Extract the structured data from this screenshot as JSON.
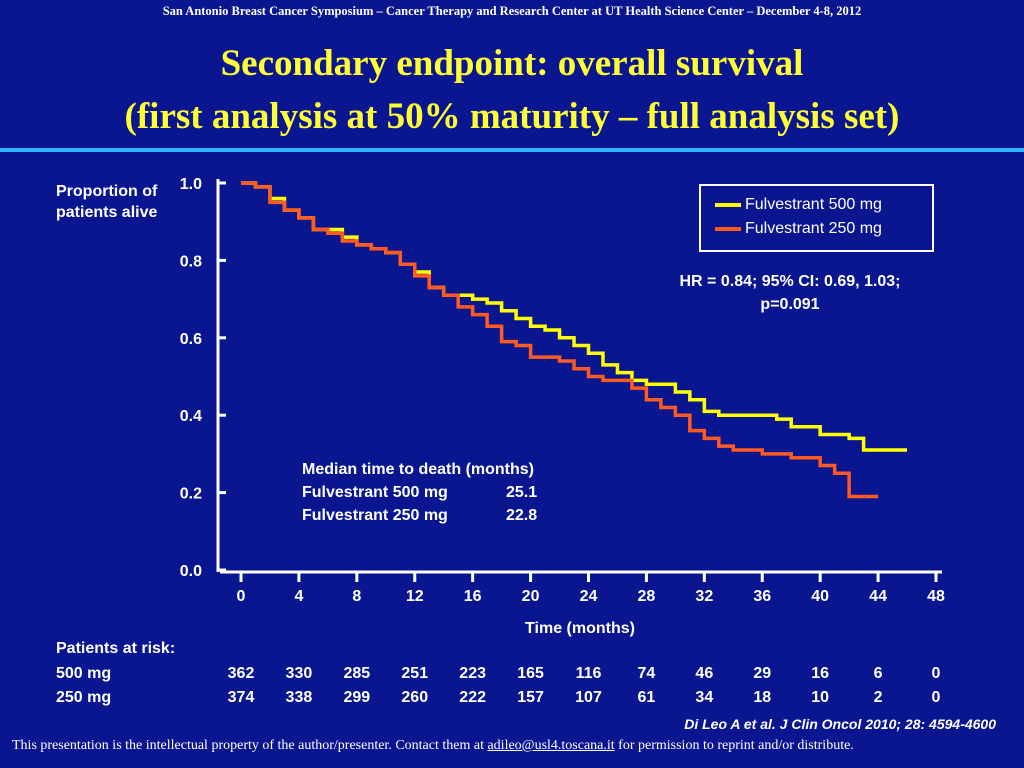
{
  "header": {
    "conference": "San Antonio Breast Cancer Symposium – Cancer Therapy and Research Center at UT Health Science Center – December 4-8, 2012",
    "title_line1": "Secondary endpoint: overall survival",
    "title_line2": "(first analysis at 50% maturity – full analysis set)"
  },
  "colors": {
    "background": "#0a1690",
    "title": "#ffff33",
    "rule": "#2fb5ff",
    "fulvestrant_500": "#ffff00",
    "fulvestrant_250": "#ff5a1f"
  },
  "chart_data": {
    "type": "line",
    "title": "",
    "xlabel": "Time (months)",
    "ylabel": "Proportion of patients alive",
    "xlim": [
      0,
      48
    ],
    "ylim": [
      0,
      1
    ],
    "x_ticks": [
      0,
      4,
      8,
      12,
      16,
      20,
      24,
      28,
      32,
      36,
      40,
      44,
      48
    ],
    "y_ticks": [
      "0.0",
      "0.2",
      "0.4",
      "0.6",
      "0.8",
      "1.0"
    ],
    "series": [
      {
        "name": "Fulvestrant 500 mg",
        "color": "#ffff00",
        "points": [
          [
            0,
            1.0
          ],
          [
            1,
            0.99
          ],
          [
            2,
            0.96
          ],
          [
            3,
            0.93
          ],
          [
            4,
            0.91
          ],
          [
            5,
            0.88
          ],
          [
            6,
            0.88
          ],
          [
            7,
            0.86
          ],
          [
            8,
            0.84
          ],
          [
            9,
            0.83
          ],
          [
            10,
            0.82
          ],
          [
            11,
            0.79
          ],
          [
            12,
            0.77
          ],
          [
            13,
            0.73
          ],
          [
            14,
            0.71
          ],
          [
            15,
            0.71
          ],
          [
            16,
            0.7
          ],
          [
            17,
            0.69
          ],
          [
            18,
            0.67
          ],
          [
            19,
            0.65
          ],
          [
            20,
            0.63
          ],
          [
            21,
            0.62
          ],
          [
            22,
            0.6
          ],
          [
            23,
            0.58
          ],
          [
            24,
            0.56
          ],
          [
            25,
            0.53
          ],
          [
            26,
            0.51
          ],
          [
            27,
            0.49
          ],
          [
            28,
            0.48
          ],
          [
            29,
            0.48
          ],
          [
            30,
            0.46
          ],
          [
            31,
            0.44
          ],
          [
            32,
            0.41
          ],
          [
            33,
            0.4
          ],
          [
            34,
            0.4
          ],
          [
            35,
            0.4
          ],
          [
            36,
            0.4
          ],
          [
            37,
            0.39
          ],
          [
            38,
            0.37
          ],
          [
            39,
            0.37
          ],
          [
            40,
            0.35
          ],
          [
            41,
            0.35
          ],
          [
            42,
            0.34
          ],
          [
            43,
            0.31
          ],
          [
            44,
            0.31
          ],
          [
            45,
            0.31
          ],
          [
            46,
            0.31
          ]
        ]
      },
      {
        "name": "Fulvestrant 250 mg",
        "color": "#ff5a1f",
        "points": [
          [
            0,
            1.0
          ],
          [
            1,
            0.99
          ],
          [
            2,
            0.95
          ],
          [
            3,
            0.93
          ],
          [
            4,
            0.91
          ],
          [
            5,
            0.88
          ],
          [
            6,
            0.87
          ],
          [
            7,
            0.85
          ],
          [
            8,
            0.84
          ],
          [
            9,
            0.83
          ],
          [
            10,
            0.82
          ],
          [
            11,
            0.79
          ],
          [
            12,
            0.76
          ],
          [
            13,
            0.73
          ],
          [
            14,
            0.71
          ],
          [
            15,
            0.68
          ],
          [
            16,
            0.66
          ],
          [
            17,
            0.63
          ],
          [
            18,
            0.59
          ],
          [
            19,
            0.58
          ],
          [
            20,
            0.55
          ],
          [
            21,
            0.55
          ],
          [
            22,
            0.54
          ],
          [
            23,
            0.52
          ],
          [
            24,
            0.5
          ],
          [
            25,
            0.49
          ],
          [
            26,
            0.49
          ],
          [
            27,
            0.47
          ],
          [
            28,
            0.44
          ],
          [
            29,
            0.42
          ],
          [
            30,
            0.4
          ],
          [
            31,
            0.36
          ],
          [
            32,
            0.34
          ],
          [
            33,
            0.32
          ],
          [
            34,
            0.31
          ],
          [
            35,
            0.31
          ],
          [
            36,
            0.3
          ],
          [
            37,
            0.3
          ],
          [
            38,
            0.29
          ],
          [
            39,
            0.29
          ],
          [
            40,
            0.27
          ],
          [
            41,
            0.25
          ],
          [
            42,
            0.19
          ],
          [
            43,
            0.19
          ],
          [
            44,
            0.19
          ]
        ]
      }
    ],
    "legend": [
      "Fulvestrant 500 mg",
      "Fulvestrant 250 mg"
    ],
    "legend_position": "top-right",
    "grid": false
  },
  "annotations": {
    "hr_line1": "HR = 0.84; 95% CI: 0.69, 1.03;",
    "hr_line2": "p=0.091",
    "median_title": "Median time to death (months)",
    "median_rows": [
      {
        "arm": "Fulvestrant 500 mg",
        "value": "25.1"
      },
      {
        "arm": "Fulvestrant 250 mg",
        "value": "22.8"
      }
    ]
  },
  "risk_table": {
    "title": "Patients at risk:",
    "rows": [
      {
        "label": "500 mg",
        "values": [
          "362",
          "330",
          "285",
          "251",
          "223",
          "165",
          "116",
          "74",
          "46",
          "29",
          "16",
          "6",
          "0"
        ]
      },
      {
        "label": "250 mg",
        "values": [
          "374",
          "338",
          "299",
          "260",
          "222",
          "157",
          "107",
          "61",
          "34",
          "18",
          "10",
          "2",
          "0"
        ]
      }
    ]
  },
  "citation": "Di Leo A et al. J Clin Oncol 2010; 28: 4594-4600",
  "footer": {
    "before": "This presentation is the intellectual property of the author/presenter. Contact them at ",
    "email": "adileo@usl4.toscana.it",
    "after": " for permission to reprint and/or distribute."
  }
}
